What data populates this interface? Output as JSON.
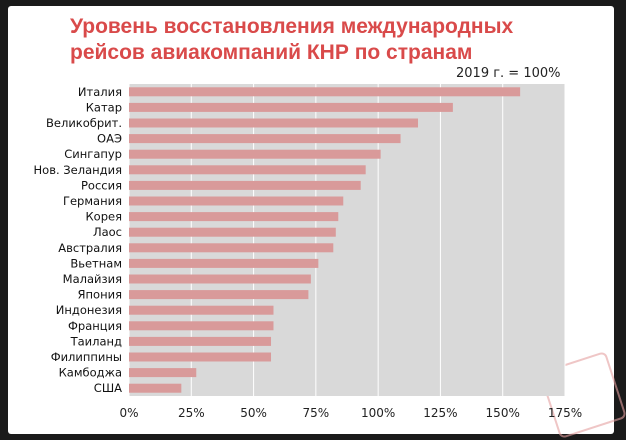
{
  "chart_data": {
    "type": "bar",
    "orientation": "horizontal",
    "title": "Уровень восстановления международных рейсов авиакомпаний КНР по странам",
    "annotation": "2019 г. = 100%",
    "categories": [
      "Италия",
      "Катар",
      "Великобрит.",
      "ОАЭ",
      "Сингапур",
      "Нов. Зеландия",
      "Россия",
      "Германия",
      "Корея",
      "Лаос",
      "Австралия",
      "Вьетнам",
      "Малайзия",
      "Япония",
      "Индонезия",
      "Франция",
      "Таиланд",
      "Филиппины",
      "Камбоджа",
      "США"
    ],
    "values": [
      157,
      130,
      116,
      109,
      101,
      95,
      93,
      86,
      84,
      83,
      82,
      76,
      73,
      72,
      58,
      58,
      57,
      57,
      27,
      21
    ],
    "xticks": [
      "0%",
      "25%",
      "50%",
      "75%",
      "100%",
      "125%",
      "150%",
      "175%"
    ],
    "xlim": [
      0,
      175
    ],
    "bar_color": "#d99a9a",
    "plot_background": "#d9d9d9",
    "grid": "vertical"
  }
}
